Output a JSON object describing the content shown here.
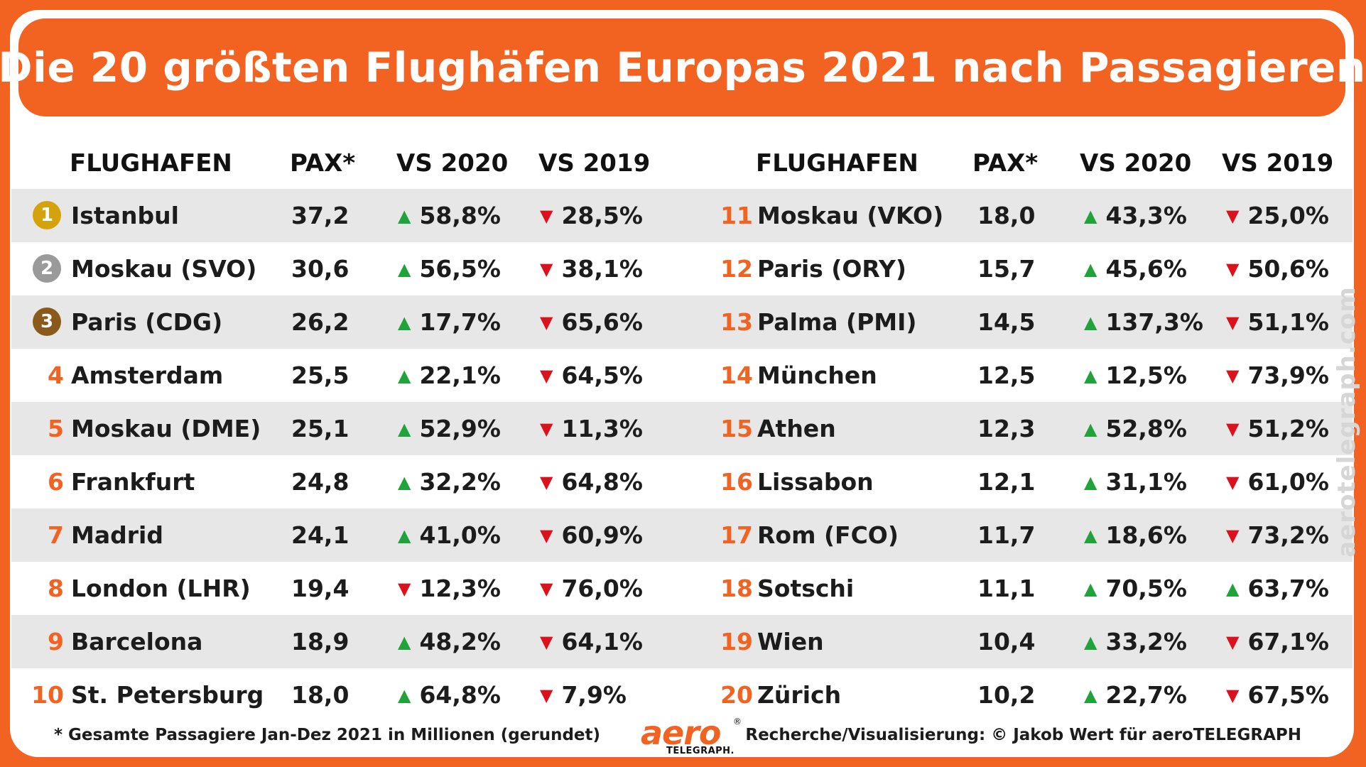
{
  "title": "Die 20 größten Flughäfen Europas 2021 nach Passagieren",
  "chart_data": {
    "type": "table",
    "columns": [
      "FLUGHAFEN",
      "PAX*",
      "VS 2020",
      "VS 2019"
    ],
    "rows": [
      {
        "rank": "1",
        "airport": "Istanbul",
        "pax": "37,2",
        "vs2020": "58,8%",
        "vs2020_dir": "up",
        "vs2019": "28,5%",
        "vs2019_dir": "down"
      },
      {
        "rank": "2",
        "airport": "Moskau (SVO)",
        "pax": "30,6",
        "vs2020": "56,5%",
        "vs2020_dir": "up",
        "vs2019": "38,1%",
        "vs2019_dir": "down"
      },
      {
        "rank": "3",
        "airport": "Paris (CDG)",
        "pax": "26,2",
        "vs2020": "17,7%",
        "vs2020_dir": "up",
        "vs2019": "65,6%",
        "vs2019_dir": "down"
      },
      {
        "rank": "4",
        "airport": "Amsterdam",
        "pax": "25,5",
        "vs2020": "22,1%",
        "vs2020_dir": "up",
        "vs2019": "64,5%",
        "vs2019_dir": "down"
      },
      {
        "rank": "5",
        "airport": "Moskau (DME)",
        "pax": "25,1",
        "vs2020": "52,9%",
        "vs2020_dir": "up",
        "vs2019": "11,3%",
        "vs2019_dir": "down"
      },
      {
        "rank": "6",
        "airport": "Frankfurt",
        "pax": "24,8",
        "vs2020": "32,2%",
        "vs2020_dir": "up",
        "vs2019": "64,8%",
        "vs2019_dir": "down"
      },
      {
        "rank": "7",
        "airport": "Madrid",
        "pax": "24,1",
        "vs2020": "41,0%",
        "vs2020_dir": "up",
        "vs2019": "60,9%",
        "vs2019_dir": "down"
      },
      {
        "rank": "8",
        "airport": "London (LHR)",
        "pax": "19,4",
        "vs2020": "12,3%",
        "vs2020_dir": "down",
        "vs2019": "76,0%",
        "vs2019_dir": "down"
      },
      {
        "rank": "9",
        "airport": "Barcelona",
        "pax": "18,9",
        "vs2020": "48,2%",
        "vs2020_dir": "up",
        "vs2019": "64,1%",
        "vs2019_dir": "down"
      },
      {
        "rank": "10",
        "airport": "St. Petersburg",
        "pax": "18,0",
        "vs2020": "64,8%",
        "vs2020_dir": "up",
        "vs2019": "7,9%",
        "vs2019_dir": "down"
      },
      {
        "rank": "11",
        "airport": "Moskau (VKO)",
        "pax": "18,0",
        "vs2020": "43,3%",
        "vs2020_dir": "up",
        "vs2019": "25,0%",
        "vs2019_dir": "down"
      },
      {
        "rank": "12",
        "airport": "Paris (ORY)",
        "pax": "15,7",
        "vs2020": "45,6%",
        "vs2020_dir": "up",
        "vs2019": "50,6%",
        "vs2019_dir": "down"
      },
      {
        "rank": "13",
        "airport": "Palma (PMI)",
        "pax": "14,5",
        "vs2020": "137,3%",
        "vs2020_dir": "up",
        "vs2019": "51,1%",
        "vs2019_dir": "down"
      },
      {
        "rank": "14",
        "airport": "München",
        "pax": "12,5",
        "vs2020": "12,5%",
        "vs2020_dir": "up",
        "vs2019": "73,9%",
        "vs2019_dir": "down"
      },
      {
        "rank": "15",
        "airport": "Athen",
        "pax": "12,3",
        "vs2020": "52,8%",
        "vs2020_dir": "up",
        "vs2019": "51,2%",
        "vs2019_dir": "down"
      },
      {
        "rank": "16",
        "airport": "Lissabon",
        "pax": "12,1",
        "vs2020": "31,1%",
        "vs2020_dir": "up",
        "vs2019": "61,0%",
        "vs2019_dir": "down"
      },
      {
        "rank": "17",
        "airport": "Rom (FCO)",
        "pax": "11,7",
        "vs2020": "18,6%",
        "vs2020_dir": "up",
        "vs2019": "73,2%",
        "vs2019_dir": "down"
      },
      {
        "rank": "18",
        "airport": "Sotschi",
        "pax": "11,1",
        "vs2020": "70,5%",
        "vs2020_dir": "up",
        "vs2019": "63,7%",
        "vs2019_dir": "up"
      },
      {
        "rank": "19",
        "airport": "Wien",
        "pax": "10,4",
        "vs2020": "33,2%",
        "vs2020_dir": "up",
        "vs2019": "67,1%",
        "vs2019_dir": "down"
      },
      {
        "rank": "20",
        "airport": "Zürich",
        "pax": "10,2",
        "vs2020": "22,7%",
        "vs2020_dir": "up",
        "vs2019": "67,5%",
        "vs2019_dir": "down"
      }
    ]
  },
  "arrows": {
    "up": "▲",
    "down": "▼"
  },
  "colors": {
    "accent": "#f26322",
    "up": "#1fa33a",
    "down": "#d9121e",
    "row_shade": "#e7e7e7",
    "medal_gold": "#d4a20a",
    "medal_silver": "#9a9a9a",
    "medal_bronze": "#8a5a1c"
  },
  "footnote": "* Gesamte Passagiere Jan-Dez 2021 in Millionen (gerundet)",
  "credit": "Recherche/Visualisierung: © Jakob Wert für aeroTELEGRAPH",
  "logo": {
    "word": "aero",
    "sub": "TELEGRAPH.",
    "reg": "®"
  },
  "watermark": "aerotelegraph.com"
}
